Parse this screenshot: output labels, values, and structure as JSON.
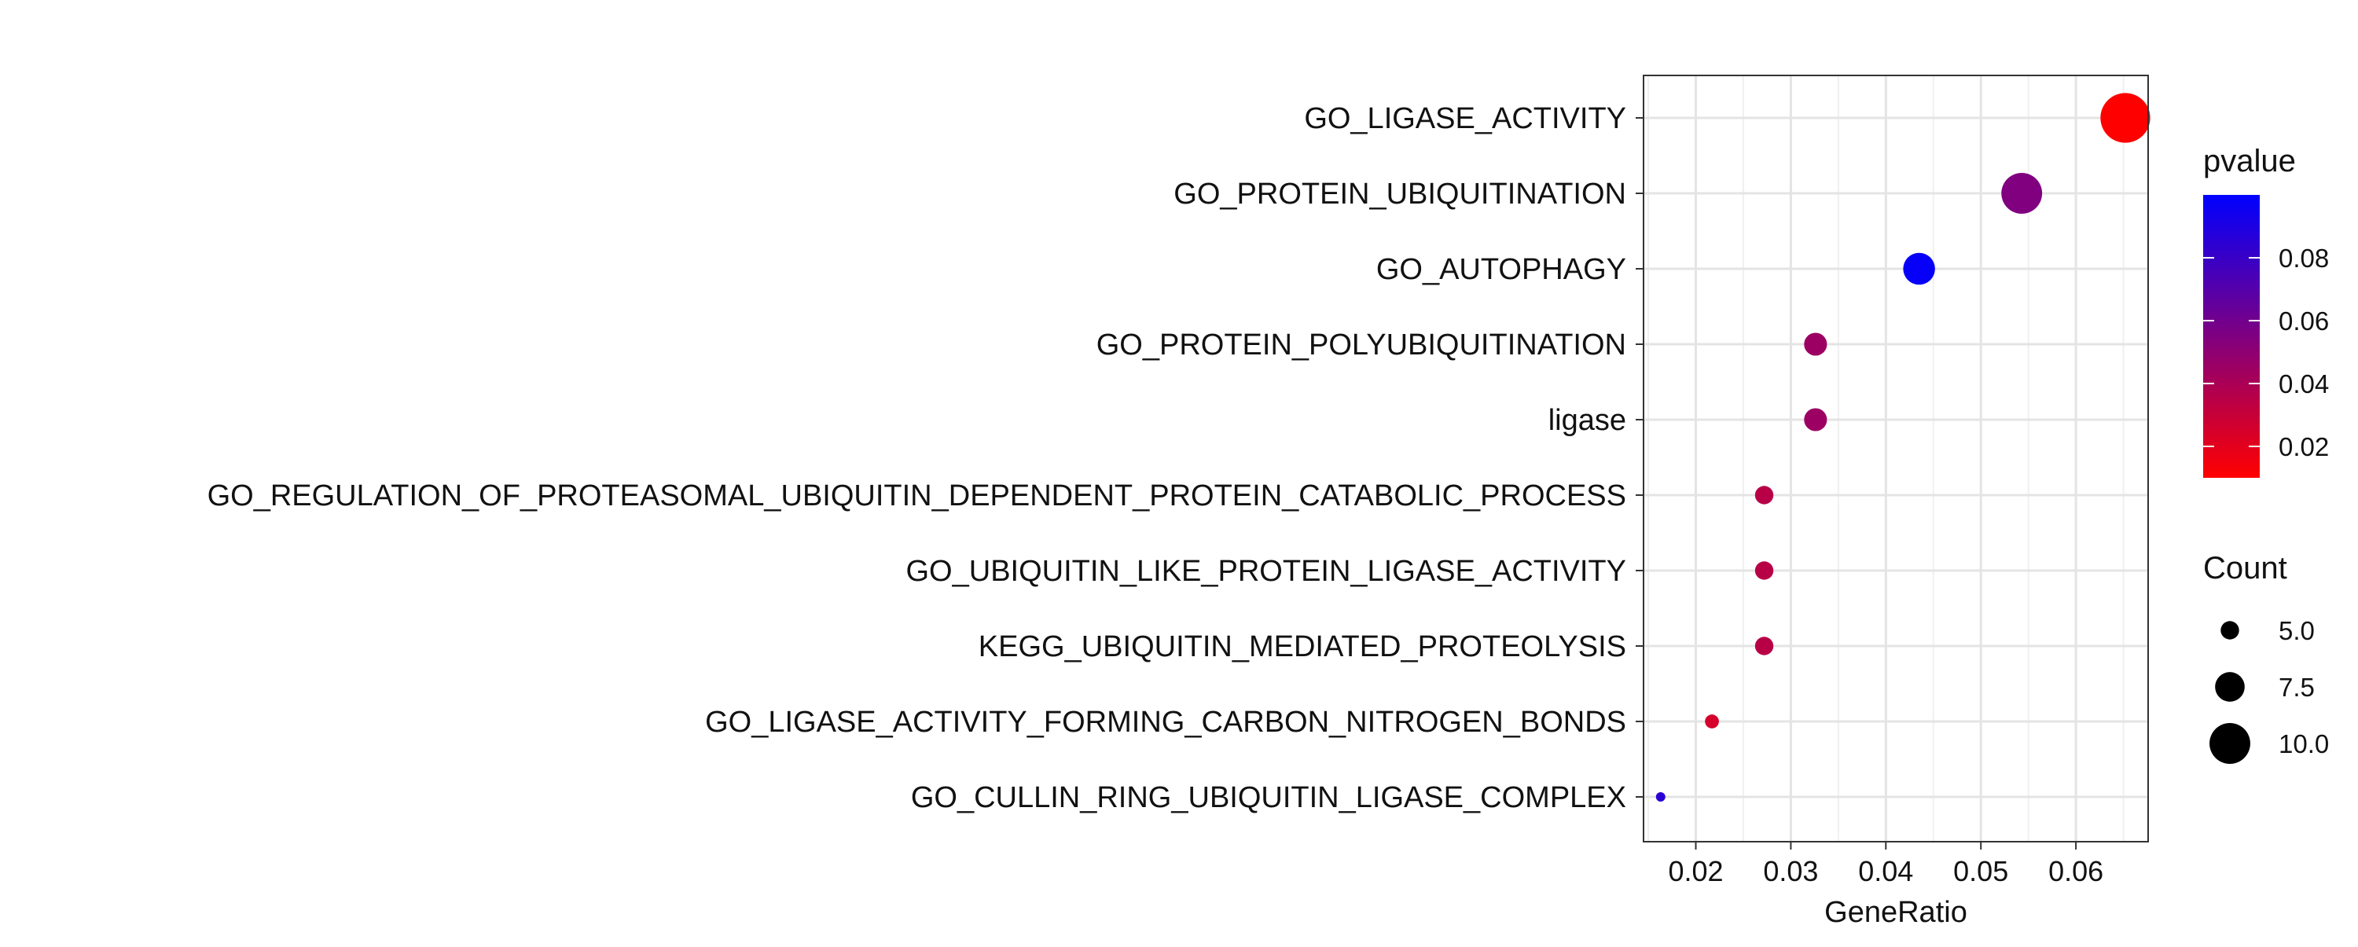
{
  "chart_data": {
    "type": "scatter",
    "title": "",
    "xlabel": "GeneRatio",
    "ylabel": "",
    "xlim": [
      0.0145,
      0.0676
    ],
    "x_ticks": [
      0.02,
      0.03,
      0.04,
      0.05,
      0.06
    ],
    "x_tick_labels": [
      "0.02",
      "0.03",
      "0.04",
      "0.05",
      "0.06"
    ],
    "grid": true,
    "legend_position": "right",
    "categories": [
      "GO_LIGASE_ACTIVITY",
      "GO_PROTEIN_UBIQUITINATION",
      "GO_AUTOPHAGY",
      "GO_PROTEIN_POLYUBIQUITINATION",
      "ligase",
      "GO_REGULATION_OF_PROTEASOMAL_UBIQUITIN_DEPENDENT_PROTEIN_CATABOLIC_PROCESS",
      "GO_UBIQUITIN_LIKE_PROTEIN_LIGASE_ACTIVITY",
      "KEGG_UBIQUITIN_MEDIATED_PROTEOLYSIS",
      "GO_LIGASE_ACTIVITY_FORMING_CARBON_NITROGEN_BONDS",
      "GO_CULLIN_RING_UBIQUITIN_LIGASE_COMPLEX"
    ],
    "gene_ratio": [
      0.0652,
      0.0543,
      0.0435,
      0.0326,
      0.0326,
      0.0272,
      0.0272,
      0.0272,
      0.0217,
      0.0163
    ],
    "count": [
      12,
      10,
      8,
      6,
      6,
      5,
      5,
      5,
      4,
      3
    ],
    "pvalue": [
      0.01,
      0.055,
      0.098,
      0.045,
      0.045,
      0.035,
      0.035,
      0.035,
      0.025,
      0.085
    ],
    "color_legend": {
      "title": "pvalue",
      "low_color": "#ff0000",
      "high_color": "#0000ff",
      "range": [
        0.01,
        0.1
      ],
      "ticks": [
        0.02,
        0.04,
        0.06,
        0.08
      ],
      "tick_labels": [
        "0.02",
        "0.04",
        "0.06",
        "0.08"
      ]
    },
    "size_legend": {
      "title": "Count",
      "values": [
        5,
        7.5,
        10
      ],
      "labels": [
        "5.0",
        "7.5",
        "10.0"
      ]
    }
  }
}
